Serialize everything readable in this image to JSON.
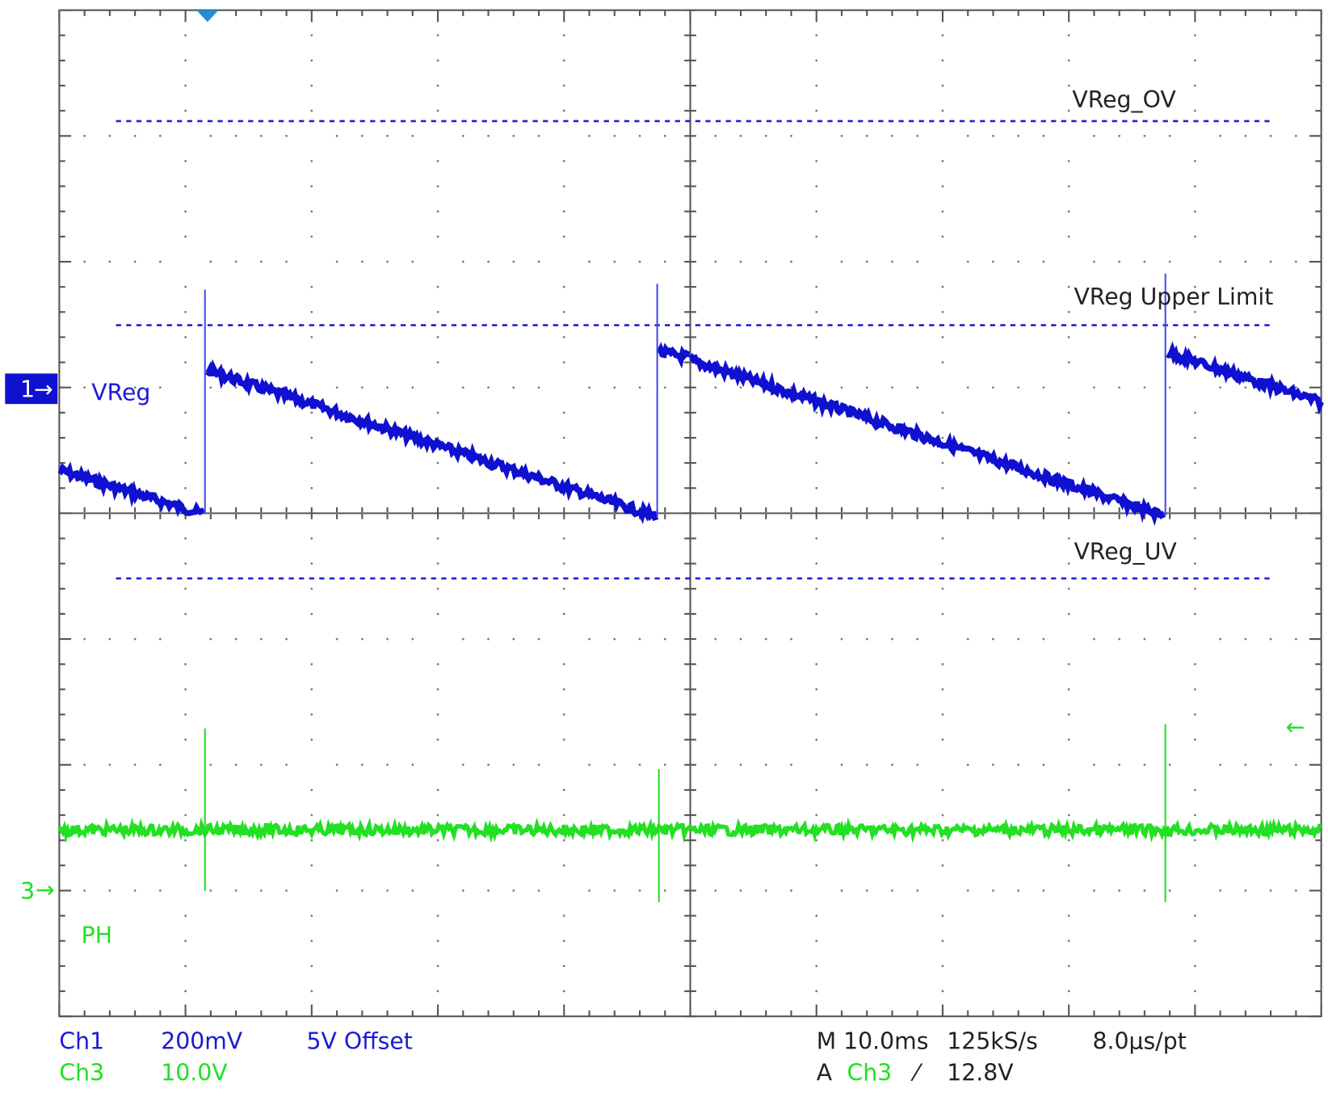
{
  "markers": {
    "ch1": "1",
    "ch1_label": "VReg",
    "ch3": "3",
    "ch3_label": "PH"
  },
  "reference_lines": {
    "ov": "VReg_OV",
    "upper": "VReg Upper Limit",
    "uv": "VReg_UV"
  },
  "status": {
    "ch1": {
      "name": "Ch1",
      "scale": "200mV",
      "offset": "5V Offset"
    },
    "ch3": {
      "name": "Ch3",
      "scale": "10.0V"
    },
    "timebase": {
      "horizontal": "M 10.0ms",
      "rate": "125kS/s",
      "resolution": "8.0µs/pt"
    },
    "trigger": {
      "label": "A",
      "source": "Ch3",
      "level": "12.8V"
    }
  }
}
